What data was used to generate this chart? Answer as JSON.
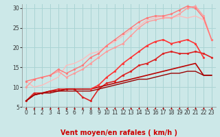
{
  "background_color": "#cce8e8",
  "grid_color": "#aad4d4",
  "xlim": [
    -0.5,
    23.5
  ],
  "ylim": [
    5,
    31
  ],
  "yticks": [
    5,
    10,
    15,
    20,
    25,
    30
  ],
  "xticks": [
    0,
    1,
    2,
    3,
    4,
    5,
    6,
    7,
    8,
    9,
    10,
    11,
    12,
    13,
    14,
    15,
    16,
    17,
    18,
    19,
    20,
    21,
    22,
    23
  ],
  "xlabel": "Vent moyen/en rafales ( km/h )",
  "lines": [
    {
      "x": [
        0,
        1,
        2,
        3,
        4,
        5,
        6,
        7,
        8,
        9,
        10,
        11,
        12,
        13,
        14,
        15,
        16,
        17,
        18,
        19,
        20,
        21,
        22,
        23
      ],
      "y": [
        11.5,
        10.0,
        10.5,
        11.5,
        12.5,
        15.5,
        16.0,
        17.0,
        18.5,
        19.0,
        20.5,
        21.5,
        23.0,
        24.5,
        25.5,
        27.0,
        27.5,
        28.0,
        27.5,
        28.0,
        27.5,
        28.0,
        27.0,
        22.0
      ],
      "color": "#ffbbbb",
      "lw": 1.0,
      "marker": null,
      "ms": 0
    },
    {
      "x": [
        0,
        1,
        2,
        3,
        4,
        5,
        6,
        7,
        8,
        9,
        10,
        11,
        12,
        13,
        14,
        15,
        16,
        17,
        18,
        19,
        20,
        21,
        22,
        23
      ],
      "y": [
        10.0,
        12.0,
        12.5,
        13.0,
        14.0,
        12.5,
        13.5,
        14.5,
        16.0,
        17.5,
        19.0,
        20.0,
        21.0,
        23.0,
        25.0,
        26.5,
        27.0,
        27.5,
        27.5,
        28.5,
        30.0,
        30.5,
        28.0,
        22.0
      ],
      "color": "#ff9999",
      "lw": 1.0,
      "marker": "o",
      "ms": 2.0
    },
    {
      "x": [
        0,
        1,
        2,
        3,
        4,
        5,
        6,
        7,
        8,
        9,
        10,
        11,
        12,
        13,
        14,
        15,
        16,
        17,
        18,
        19,
        20,
        21,
        22,
        23
      ],
      "y": [
        11.5,
        12.0,
        12.5,
        13.0,
        14.5,
        13.5,
        14.5,
        15.5,
        17.5,
        18.5,
        20.5,
        22.0,
        23.5,
        25.0,
        26.5,
        27.5,
        28.0,
        28.0,
        28.5,
        29.5,
        30.5,
        30.0,
        27.5,
        22.0
      ],
      "color": "#ff7777",
      "lw": 1.0,
      "marker": "o",
      "ms": 2.0
    },
    {
      "x": [
        0,
        1,
        2,
        3,
        4,
        5,
        6,
        7,
        8,
        9,
        10,
        11,
        12,
        13,
        14,
        15,
        16,
        17,
        18,
        19,
        20,
        21,
        22,
        23
      ],
      "y": [
        6.5,
        8.5,
        8.5,
        9.0,
        9.5,
        9.5,
        9.5,
        7.5,
        6.5,
        9.5,
        11.0,
        11.5,
        13.0,
        14.0,
        15.5,
        16.0,
        17.0,
        18.5,
        19.0,
        18.5,
        18.5,
        19.0,
        18.5,
        17.5
      ],
      "color": "#dd2222",
      "lw": 1.2,
      "marker": "o",
      "ms": 2.0
    },
    {
      "x": [
        0,
        1,
        2,
        3,
        4,
        5,
        6,
        7,
        8,
        9,
        10,
        11,
        12,
        13,
        14,
        15,
        16,
        17,
        18,
        19,
        20,
        21,
        22,
        23
      ],
      "y": [
        6.5,
        8.0,
        8.5,
        9.0,
        9.0,
        9.5,
        9.5,
        9.5,
        9.5,
        10.0,
        10.5,
        11.0,
        11.5,
        12.0,
        12.5,
        13.0,
        13.5,
        14.0,
        14.5,
        15.0,
        15.5,
        16.0,
        13.0,
        13.0
      ],
      "color": "#bb0000",
      "lw": 1.2,
      "marker": null,
      "ms": 0
    },
    {
      "x": [
        0,
        1,
        2,
        3,
        4,
        5,
        6,
        7,
        8,
        9,
        10,
        11,
        12,
        13,
        14,
        15,
        16,
        17,
        18,
        19,
        20,
        21,
        22,
        23
      ],
      "y": [
        6.5,
        8.0,
        8.5,
        8.5,
        9.0,
        9.0,
        9.0,
        9.0,
        9.0,
        9.5,
        10.0,
        10.5,
        11.0,
        11.5,
        12.0,
        12.0,
        12.5,
        13.0,
        13.5,
        13.5,
        14.0,
        14.0,
        13.0,
        13.0
      ],
      "color": "#990000",
      "lw": 1.0,
      "marker": null,
      "ms": 0
    },
    {
      "x": [
        8,
        9,
        10,
        11,
        12,
        13,
        14,
        15,
        16,
        17,
        18,
        19,
        20,
        21,
        22
      ],
      "y": [
        9.5,
        10.5,
        12.5,
        14.0,
        16.0,
        17.5,
        19.0,
        20.5,
        21.5,
        22.0,
        21.0,
        21.5,
        22.0,
        21.0,
        17.5
      ],
      "color": "#ff3333",
      "lw": 1.2,
      "marker": "o",
      "ms": 2.0
    }
  ],
  "xlabel_fontsize": 7,
  "tick_fontsize": 5.5
}
